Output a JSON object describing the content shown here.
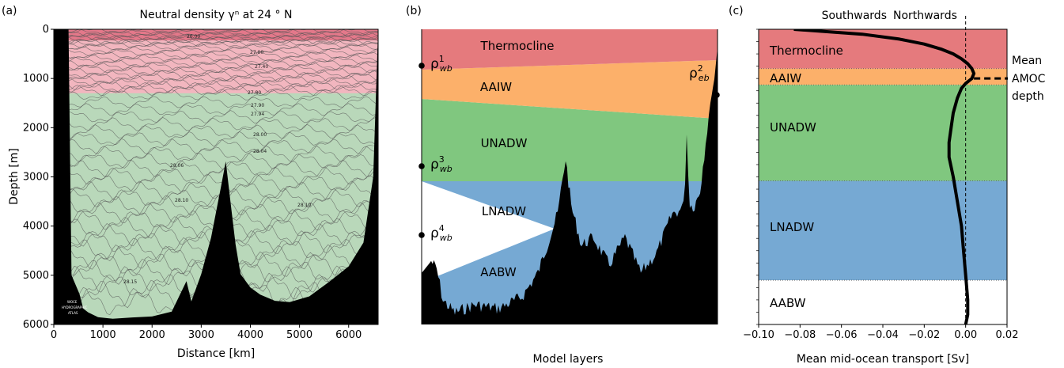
{
  "panel_a": {
    "letter": "(a)",
    "title": "Neutral density γⁿ at 24 ° N",
    "xlabel": "Distance [km]",
    "ylabel": "Depth [m]",
    "x_ticks": [
      "0",
      "1000",
      "2000",
      "3000",
      "4000",
      "5000",
      "6000"
    ],
    "y_ticks": [
      "0",
      "1000",
      "2000",
      "3000",
      "4000",
      "5000",
      "6000"
    ],
    "contour_labels": [
      "26.00",
      "27.00",
      "27.40",
      "27.80",
      "27.90",
      "27.94",
      "28.00",
      "28.04",
      "28.06",
      "28.10",
      "28.10",
      "28.15"
    ],
    "watermark": [
      "WOCE",
      "HYDROGRAPHIC",
      "ATLAS"
    ],
    "colors": {
      "upper": "#f2b6bf",
      "upper_dark": "#d9465e",
      "lower": "#b9d8ba",
      "bathymetry": "#000000",
      "contour": "#555555"
    }
  },
  "panel_b": {
    "letter": "(b)",
    "xlabel": "Model layers",
    "layers": [
      {
        "name": "Thermocline",
        "color": "#e57a7d"
      },
      {
        "name": "AAIW",
        "color": "#fcb06a"
      },
      {
        "name": "UNADW",
        "color": "#80c77f"
      },
      {
        "name": "LNADW",
        "color": "#76a9d3"
      },
      {
        "name": "AABW",
        "color": "#ffffff"
      }
    ],
    "markers": [
      {
        "base": "ρ",
        "sub": "wb",
        "sup": "1"
      },
      {
        "base": "ρ",
        "sub": "eb",
        "sup": "2"
      },
      {
        "base": "ρ",
        "sub": "wb",
        "sup": "3"
      },
      {
        "base": "ρ",
        "sub": "wb",
        "sup": "4"
      }
    ]
  },
  "panel_c": {
    "letter": "(c)",
    "south_label": "Southwards",
    "north_label": "Northwards",
    "xlabel": "Mean mid-ocean transport [Sv]",
    "annotation": [
      "Mean",
      "AMOC",
      "depth"
    ],
    "layers": [
      {
        "name": "Thermocline",
        "color": "#e57a7d"
      },
      {
        "name": "AAIW",
        "color": "#fcb06a"
      },
      {
        "name": "UNADW",
        "color": "#80c77f"
      },
      {
        "name": "LNADW",
        "color": "#76a9d3"
      },
      {
        "name": "AABW",
        "color": "#ffffff"
      }
    ]
  },
  "chart_data": [
    {
      "type": "heatmap",
      "title": "Neutral density γⁿ at 24 ° N",
      "xlabel": "Distance [km]",
      "ylabel": "Depth [m]",
      "xlim": [
        0,
        6600
      ],
      "ylim": [
        6000,
        0
      ],
      "contour_levels": [
        26.0,
        27.0,
        27.4,
        27.8,
        27.9,
        27.94,
        28.0,
        28.04,
        28.06,
        28.1,
        28.15
      ],
      "upper_water_base_depth_m": 1300,
      "bathymetry": {
        "x_km": [
          0,
          300,
          360,
          520,
          600,
          700,
          900,
          1200,
          1600,
          2000,
          2400,
          2700,
          2800,
          3000,
          3200,
          3400,
          3500,
          3600,
          3700,
          3800,
          4000,
          4200,
          4500,
          4800,
          5200,
          5600,
          6000,
          6300,
          6500,
          6550,
          6600
        ],
        "depth_m": [
          0,
          0,
          5000,
          5200,
          5500,
          5600,
          5750,
          5850,
          5900,
          5950,
          5900,
          5300,
          5700,
          5100,
          4300,
          3200,
          2600,
          3400,
          4200,
          4800,
          5100,
          5300,
          5500,
          5600,
          5550,
          5300,
          5000,
          4500,
          3000,
          1500,
          0
        ]
      }
    },
    {
      "type": "area",
      "xlabel": "Model layers",
      "layers": [
        "Thermocline",
        "AAIW",
        "UNADW",
        "LNADW",
        "AABW"
      ]
    },
    {
      "type": "line",
      "xlabel": "Mean mid-ocean transport [Sv]",
      "xlim": [
        -0.1,
        0.02
      ],
      "x_ticks": [
        -0.1,
        -0.08,
        -0.06,
        -0.04,
        -0.02,
        0.0,
        0.02
      ],
      "x_tick_labels": [
        "−0.10",
        "−0.08",
        "−0.06",
        "−0.04",
        "−0.02",
        "0.00",
        "0.02"
      ],
      "ylim": [
        6000,
        0
      ],
      "layer_boundaries_m": [
        0,
        800,
        1130,
        3080,
        5100,
        6000
      ],
      "mean_amoc_depth_m": 1000,
      "series": [
        {
          "depth_m": [
            0,
            100,
            200,
            300,
            400,
            500,
            600,
            700,
            800,
            900,
            1000,
            1100,
            1200,
            1400,
            1700,
            2000,
            2300,
            2600,
            3000,
            3500,
            4000,
            4500,
            5000,
            5500,
            5800,
            6000
          ],
          "transport_sv": [
            -0.083,
            -0.05,
            -0.032,
            -0.02,
            -0.012,
            -0.006,
            -0.002,
            0.001,
            0.003,
            0.004,
            0.003,
            0.0,
            -0.002,
            -0.004,
            -0.006,
            -0.007,
            -0.008,
            -0.008,
            -0.006,
            -0.004,
            -0.002,
            -0.001,
            0.0,
            0.001,
            0.001,
            0.0
          ]
        }
      ]
    }
  ]
}
